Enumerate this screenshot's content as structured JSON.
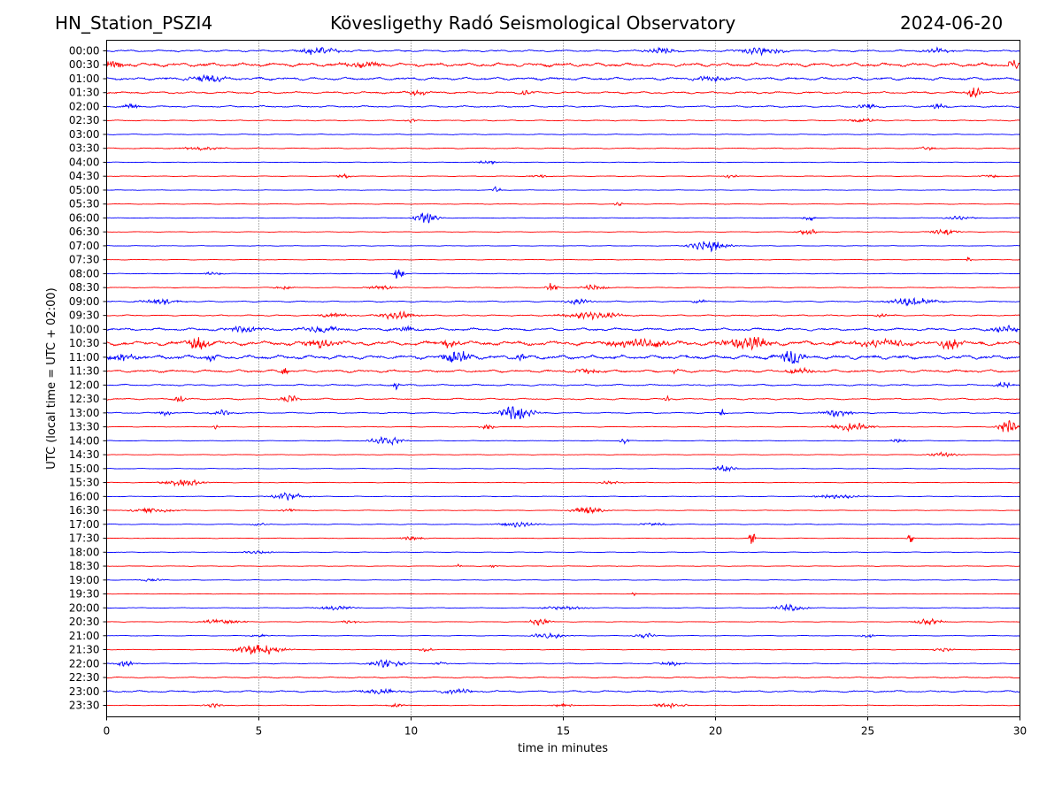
{
  "header": {
    "station": "HN_Station_PSZI4",
    "observatory": "Kövesligethy Radó Seismological Observatory",
    "date": "2024-06-20"
  },
  "chart_data": {
    "type": "line",
    "title": "Kövesligethy Radó Seismological Observatory",
    "xlabel": "time in minutes",
    "ylabel": "UTC (local time = UTC + 02:00)",
    "xlim": [
      0,
      30
    ],
    "x_ticks": [
      "0",
      "5",
      "10",
      "15",
      "20",
      "25",
      "30"
    ],
    "x_tick_values": [
      0,
      5,
      10,
      15,
      20,
      25,
      30
    ],
    "grid": "vertical dotted at 5-minute intervals",
    "colors": {
      "even_hour": "#0000ff",
      "half_hour": "#ff0000"
    },
    "traces": [
      {
        "label": "00:00",
        "color": "#0000ff",
        "noise": 0.9,
        "events": [
          [
            7.0,
            1.3,
            3
          ],
          [
            21.5,
            1.5,
            2.5
          ],
          [
            27.3,
            0.8,
            2
          ],
          [
            18.2,
            1.0,
            2
          ]
        ]
      },
      {
        "label": "00:30",
        "color": "#ff0000",
        "noise": 1.8,
        "events": [
          [
            0.2,
            0.8,
            3
          ],
          [
            8.5,
            1.2,
            2.5
          ],
          [
            29.8,
            0.5,
            3
          ]
        ]
      },
      {
        "label": "01:00",
        "color": "#0000ff",
        "noise": 1.4,
        "events": [
          [
            3.3,
            1.0,
            3
          ],
          [
            19.8,
            1.0,
            2.5
          ]
        ]
      },
      {
        "label": "01:30",
        "color": "#ff0000",
        "noise": 1.0,
        "events": [
          [
            28.5,
            0.4,
            4
          ],
          [
            10.2,
            0.6,
            2
          ],
          [
            13.8,
            0.4,
            2
          ]
        ]
      },
      {
        "label": "02:00",
        "color": "#0000ff",
        "noise": 0.8,
        "events": [
          [
            0.8,
            0.4,
            2.5
          ],
          [
            25.0,
            0.6,
            2
          ],
          [
            27.3,
            0.4,
            2
          ]
        ]
      },
      {
        "label": "02:30",
        "color": "#ff0000",
        "noise": 0.5,
        "events": [
          [
            24.8,
            1.0,
            1.5
          ],
          [
            10.0,
            0.3,
            1.5
          ]
        ]
      },
      {
        "label": "03:00",
        "color": "#0000ff",
        "noise": 0.4,
        "events": []
      },
      {
        "label": "03:30",
        "color": "#ff0000",
        "noise": 0.5,
        "events": [
          [
            3.0,
            1.5,
            1.2
          ],
          [
            27.0,
            0.5,
            1.2
          ]
        ]
      },
      {
        "label": "04:00",
        "color": "#0000ff",
        "noise": 0.3,
        "events": [
          [
            12.5,
            0.5,
            1.5
          ]
        ]
      },
      {
        "label": "04:30",
        "color": "#ff0000",
        "noise": 0.3,
        "events": [
          [
            7.8,
            0.4,
            1.5
          ],
          [
            14.2,
            0.6,
            1.2
          ],
          [
            20.5,
            0.5,
            1.2
          ],
          [
            29.0,
            0.6,
            1.2
          ]
        ]
      },
      {
        "label": "05:00",
        "color": "#0000ff",
        "noise": 0.3,
        "events": [
          [
            12.8,
            0.2,
            2.5
          ]
        ]
      },
      {
        "label": "05:30",
        "color": "#ff0000",
        "noise": 0.3,
        "events": [
          [
            16.8,
            0.2,
            1.5
          ]
        ]
      },
      {
        "label": "06:00",
        "color": "#0000ff",
        "noise": 0.3,
        "events": [
          [
            10.5,
            0.7,
            4
          ],
          [
            23.1,
            0.3,
            3
          ],
          [
            28.0,
            1.0,
            1.2
          ]
        ]
      },
      {
        "label": "06:30",
        "color": "#ff0000",
        "noise": 0.3,
        "events": [
          [
            23.0,
            0.6,
            2.5
          ],
          [
            27.5,
            0.8,
            2.5
          ]
        ]
      },
      {
        "label": "07:00",
        "color": "#0000ff",
        "noise": 0.3,
        "events": [
          [
            19.8,
            1.2,
            4
          ]
        ]
      },
      {
        "label": "07:30",
        "color": "#ff0000",
        "noise": 0.3,
        "events": [
          [
            28.3,
            0.1,
            3
          ]
        ]
      },
      {
        "label": "08:00",
        "color": "#0000ff",
        "noise": 0.3,
        "events": [
          [
            9.6,
            0.2,
            7
          ],
          [
            3.5,
            0.6,
            1.2
          ]
        ]
      },
      {
        "label": "08:30",
        "color": "#ff0000",
        "noise": 0.4,
        "events": [
          [
            14.6,
            0.3,
            3.5
          ],
          [
            16.0,
            0.8,
            2
          ],
          [
            9.0,
            1.0,
            1.5
          ],
          [
            5.8,
            0.5,
            1.5
          ]
        ]
      },
      {
        "label": "09:00",
        "color": "#0000ff",
        "noise": 0.6,
        "events": [
          [
            1.8,
            1.2,
            2
          ],
          [
            15.5,
            0.8,
            2
          ],
          [
            26.5,
            1.5,
            3
          ],
          [
            19.5,
            0.4,
            1.5
          ]
        ]
      },
      {
        "label": "09:30",
        "color": "#ff0000",
        "noise": 0.6,
        "events": [
          [
            9.5,
            1.2,
            3
          ],
          [
            7.5,
            1.0,
            2
          ],
          [
            16.0,
            2.0,
            2.5
          ],
          [
            25.5,
            0.5,
            1.5
          ]
        ]
      },
      {
        "label": "10:00",
        "color": "#0000ff",
        "noise": 1.3,
        "events": [
          [
            4.5,
            1.2,
            2.5
          ],
          [
            7.0,
            1.5,
            2
          ],
          [
            9.8,
            0.8,
            2
          ],
          [
            29.5,
            0.8,
            3
          ]
        ]
      },
      {
        "label": "10:30",
        "color": "#ff0000",
        "noise": 2.2,
        "events": [
          [
            3.0,
            0.6,
            5
          ],
          [
            7.0,
            1.2,
            3
          ],
          [
            11.3,
            0.5,
            3
          ],
          [
            17.5,
            2.0,
            3
          ],
          [
            21.0,
            1.5,
            5
          ],
          [
            25.5,
            2.0,
            2.5
          ],
          [
            27.7,
            0.5,
            4.5
          ]
        ]
      },
      {
        "label": "11:00",
        "color": "#0000ff",
        "noise": 2.0,
        "events": [
          [
            0.5,
            1.0,
            3
          ],
          [
            11.5,
            0.8,
            6
          ],
          [
            22.5,
            0.7,
            5
          ],
          [
            3.4,
            0.3,
            3
          ],
          [
            13.6,
            0.2,
            2.5
          ]
        ]
      },
      {
        "label": "11:30",
        "color": "#ff0000",
        "noise": 1.3,
        "events": [
          [
            5.8,
            0.2,
            3.5
          ],
          [
            15.8,
            0.8,
            2
          ],
          [
            18.7,
            0.1,
            3.5
          ],
          [
            22.8,
            1.0,
            2
          ]
        ]
      },
      {
        "label": "12:00",
        "color": "#0000ff",
        "noise": 0.8,
        "events": [
          [
            9.5,
            0.1,
            4
          ],
          [
            29.5,
            0.6,
            2
          ]
        ]
      },
      {
        "label": "12:30",
        "color": "#ff0000",
        "noise": 0.8,
        "events": [
          [
            2.4,
            0.3,
            2.5
          ],
          [
            6.0,
            0.5,
            2.5
          ],
          [
            18.4,
            0.1,
            3
          ]
        ]
      },
      {
        "label": "13:00",
        "color": "#0000ff",
        "noise": 0.6,
        "events": [
          [
            13.5,
            1.0,
            6
          ],
          [
            1.9,
            0.4,
            2
          ],
          [
            3.8,
            0.7,
            2
          ],
          [
            24.0,
            1.0,
            2.5
          ],
          [
            20.2,
            0.1,
            3
          ]
        ]
      },
      {
        "label": "13:30",
        "color": "#ff0000",
        "noise": 0.3,
        "events": [
          [
            29.6,
            0.5,
            5
          ],
          [
            24.5,
            1.2,
            3
          ],
          [
            12.5,
            0.4,
            2
          ],
          [
            3.6,
            0.1,
            2.5
          ]
        ]
      },
      {
        "label": "14:00",
        "color": "#0000ff",
        "noise": 0.3,
        "events": [
          [
            9.2,
            1.0,
            3
          ],
          [
            17.0,
            0.2,
            2
          ],
          [
            26.0,
            0.5,
            1.2
          ]
        ]
      },
      {
        "label": "14:30",
        "color": "#ff0000",
        "noise": 0.3,
        "events": [
          [
            27.5,
            1.0,
            1.5
          ]
        ]
      },
      {
        "label": "15:00",
        "color": "#0000ff",
        "noise": 0.3,
        "events": [
          [
            20.3,
            0.6,
            2.5
          ]
        ]
      },
      {
        "label": "15:30",
        "color": "#ff0000",
        "noise": 0.3,
        "events": [
          [
            2.5,
            1.2,
            3
          ],
          [
            16.5,
            0.6,
            1.5
          ]
        ]
      },
      {
        "label": "16:00",
        "color": "#0000ff",
        "noise": 0.3,
        "events": [
          [
            6.0,
            1.0,
            3
          ],
          [
            24.0,
            1.5,
            1.5
          ]
        ]
      },
      {
        "label": "16:30",
        "color": "#ff0000",
        "noise": 0.3,
        "events": [
          [
            1.5,
            1.5,
            1.5
          ],
          [
            15.8,
            1.0,
            2.5
          ],
          [
            6.0,
            0.5,
            1.2
          ]
        ]
      },
      {
        "label": "17:00",
        "color": "#0000ff",
        "noise": 0.4,
        "events": [
          [
            13.5,
            1.2,
            2
          ],
          [
            5.0,
            0.5,
            1.2
          ],
          [
            18.0,
            1.0,
            1.2
          ]
        ]
      },
      {
        "label": "17:30",
        "color": "#ff0000",
        "noise": 0.3,
        "events": [
          [
            21.2,
            0.1,
            6
          ],
          [
            26.4,
            0.1,
            5
          ],
          [
            10.0,
            0.8,
            1.5
          ]
        ]
      },
      {
        "label": "18:00",
        "color": "#0000ff",
        "noise": 0.3,
        "events": [
          [
            5.0,
            1.0,
            1.2
          ]
        ]
      },
      {
        "label": "18:30",
        "color": "#ff0000",
        "noise": 0.3,
        "events": [
          [
            12.7,
            0.2,
            1.5
          ],
          [
            11.6,
            0.1,
            1.5
          ]
        ]
      },
      {
        "label": "19:00",
        "color": "#0000ff",
        "noise": 0.3,
        "events": [
          [
            1.5,
            0.6,
            1.2
          ]
        ]
      },
      {
        "label": "19:30",
        "color": "#ff0000",
        "noise": 0.2,
        "events": [
          [
            17.3,
            0.1,
            1.5
          ]
        ]
      },
      {
        "label": "20:00",
        "color": "#0000ff",
        "noise": 0.3,
        "events": [
          [
            7.5,
            1.2,
            1.5
          ],
          [
            15.0,
            1.5,
            1.3
          ],
          [
            22.5,
            1.0,
            2.5
          ]
        ]
      },
      {
        "label": "20:30",
        "color": "#ff0000",
        "noise": 0.3,
        "events": [
          [
            3.8,
            1.5,
            2
          ],
          [
            14.2,
            0.6,
            2.5
          ],
          [
            27.0,
            0.8,
            2.5
          ],
          [
            8.0,
            0.5,
            1.2
          ]
        ]
      },
      {
        "label": "21:00",
        "color": "#0000ff",
        "noise": 0.3,
        "events": [
          [
            14.5,
            1.0,
            2
          ],
          [
            17.7,
            0.6,
            2
          ],
          [
            25.0,
            0.5,
            1.2
          ],
          [
            5.0,
            0.6,
            1.2
          ]
        ]
      },
      {
        "label": "21:30",
        "color": "#ff0000",
        "noise": 0.3,
        "events": [
          [
            5.0,
            1.5,
            4
          ],
          [
            10.5,
            0.4,
            1.5
          ],
          [
            27.5,
            0.6,
            1.5
          ]
        ]
      },
      {
        "label": "22:00",
        "color": "#0000ff",
        "noise": 0.4,
        "events": [
          [
            0.6,
            0.6,
            2
          ],
          [
            9.2,
            1.0,
            3
          ],
          [
            11.0,
            0.5,
            1.2
          ],
          [
            18.5,
            0.8,
            1.5
          ]
        ]
      },
      {
        "label": "22:30",
        "color": "#ff0000",
        "noise": 0.6,
        "events": []
      },
      {
        "label": "23:00",
        "color": "#0000ff",
        "noise": 0.9,
        "events": [
          [
            9.0,
            1.2,
            1.8
          ],
          [
            11.5,
            1.0,
            2
          ]
        ]
      },
      {
        "label": "23:30",
        "color": "#ff0000",
        "noise": 0.3,
        "events": [
          [
            3.5,
            0.6,
            1.5
          ],
          [
            9.5,
            0.5,
            1.5
          ],
          [
            18.5,
            1.0,
            2
          ],
          [
            15.0,
            0.7,
            1.2
          ]
        ]
      }
    ]
  }
}
